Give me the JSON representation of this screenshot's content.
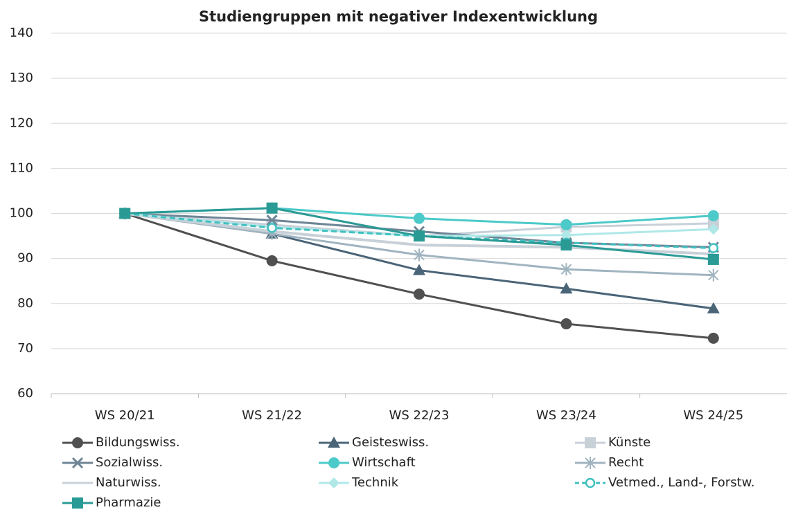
{
  "chart_data": {
    "type": "line",
    "title": "Studiengruppen mit negativer Indexentwicklung",
    "categories": [
      "WS 20/21",
      "WS 21/22",
      "WS 22/23",
      "WS 23/24",
      "WS 24/25"
    ],
    "ylim": [
      60,
      140
    ],
    "yticks": [
      60,
      70,
      80,
      90,
      100,
      110,
      120,
      130,
      140
    ],
    "grid": true,
    "series": [
      {
        "name": "Bildungswiss.",
        "color": "#505050",
        "marker": "circle",
        "values": [
          100,
          89.5,
          82.1,
          75.5,
          72.3
        ]
      },
      {
        "name": "Geisteswiss.",
        "color": "#4a6478",
        "marker": "triangle",
        "values": [
          100,
          95.5,
          87.4,
          83.3,
          78.9
        ]
      },
      {
        "name": "Künste",
        "color": "#c8d0d8",
        "marker": "square",
        "values": [
          100,
          97.5,
          95,
          97,
          97.8
        ]
      },
      {
        "name": "Sozialwiss.",
        "color": "#6e8596",
        "marker": "x",
        "values": [
          100,
          98.5,
          96,
          93.5,
          92.5
        ]
      },
      {
        "name": "Wirtschaft",
        "color": "#4cc9c9",
        "marker": "circle",
        "values": [
          100,
          101.2,
          98.9,
          97.5,
          99.5
        ]
      },
      {
        "name": "Recht",
        "color": "#a0b4c0",
        "marker": "star",
        "values": [
          100,
          95.5,
          90.8,
          87.6,
          86.3
        ]
      },
      {
        "name": "Naturwiss.",
        "color": "#c8d0d8",
        "marker": "none",
        "values": [
          100,
          96,
          93,
          92.5,
          91
        ]
      },
      {
        "name": "Technik",
        "color": "#b0e8e8",
        "marker": "diamond",
        "values": [
          100,
          97,
          95,
          95.2,
          96.5
        ]
      },
      {
        "name": "Vetmed., Land-, Forstw.",
        "color": "#40c0c0",
        "marker": "open-circle",
        "dashed": true,
        "values": [
          100,
          96.8,
          95,
          93.5,
          92.3
        ]
      },
      {
        "name": "Pharmazie",
        "color": "#2a9a95",
        "marker": "square",
        "values": [
          100,
          101.2,
          95,
          93,
          89.8
        ]
      }
    ]
  }
}
